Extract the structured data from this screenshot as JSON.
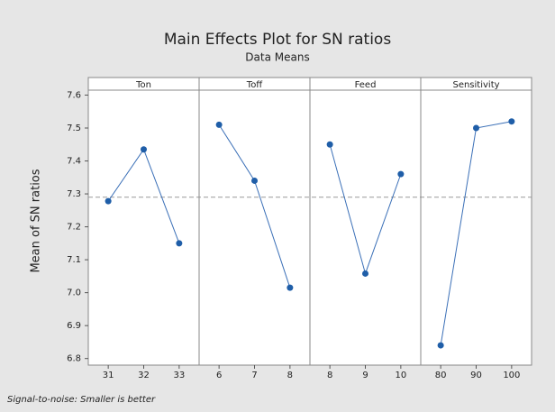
{
  "chart_data": {
    "type": "line",
    "title": "Main Effects Plot for SN ratios",
    "subtitle": "Data Means",
    "ylabel": "Mean of SN ratios",
    "footnote": "Signal-to-noise: Smaller is better",
    "color": "#1f5ea8",
    "reference_line": 7.29,
    "ylim": [
      6.78,
      7.615
    ],
    "yticks": [
      6.8,
      6.9,
      {
        "value": 7,
        "label": "7.0"
      },
      7.1,
      7.2,
      7.3,
      7.4,
      7.5,
      7.6
    ],
    "panels": [
      {
        "name": "Ton",
        "categories": [
          "31",
          "32",
          "33"
        ],
        "values": [
          7.278,
          7.435,
          7.15
        ]
      },
      {
        "name": "Toff",
        "categories": [
          "6",
          "7",
          "8"
        ],
        "values": [
          7.51,
          7.34,
          7.015
        ]
      },
      {
        "name": "Feed",
        "categories": [
          "8",
          "9",
          "10"
        ],
        "values": [
          7.45,
          7.058,
          7.36
        ]
      },
      {
        "name": "Sensitivity",
        "categories": [
          "80",
          "90",
          "100"
        ],
        "values": [
          6.84,
          7.5,
          7.52
        ]
      }
    ]
  }
}
